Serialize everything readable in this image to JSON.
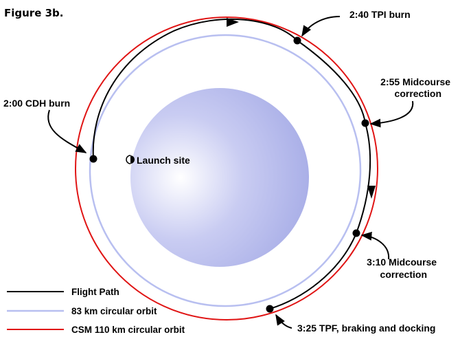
{
  "figure_label": "Figure 3b.",
  "colors": {
    "flight_path": "#000000",
    "orbit_83km": "#b8bff0",
    "csm_orbit": "#e01414",
    "moon_center": "#ffffff",
    "moon_mid": "#c9ccf2",
    "moon_edge": "#a5abe6"
  },
  "events": [
    {
      "id": "cdh",
      "lines": [
        "2:00 CDH burn"
      ]
    },
    {
      "id": "tpi",
      "lines": [
        "2:40 TPI burn"
      ]
    },
    {
      "id": "mc1",
      "lines": [
        "2:55 Midcourse",
        "correction"
      ]
    },
    {
      "id": "mc2",
      "lines": [
        "3:10 Midcourse",
        "correction"
      ]
    },
    {
      "id": "tpf",
      "lines": [
        "3:25 TPF, braking and docking"
      ]
    }
  ],
  "launch_site": {
    "label": "Launch site"
  },
  "legend": [
    {
      "key": "flight_path",
      "label": "Flight Path",
      "color": "#000000"
    },
    {
      "key": "orbit_83km",
      "label": "83 km circular orbit",
      "color": "#b8bff0"
    },
    {
      "key": "csm_orbit",
      "label": "CSM 110 km circular orbit",
      "color": "#e01414"
    }
  ]
}
